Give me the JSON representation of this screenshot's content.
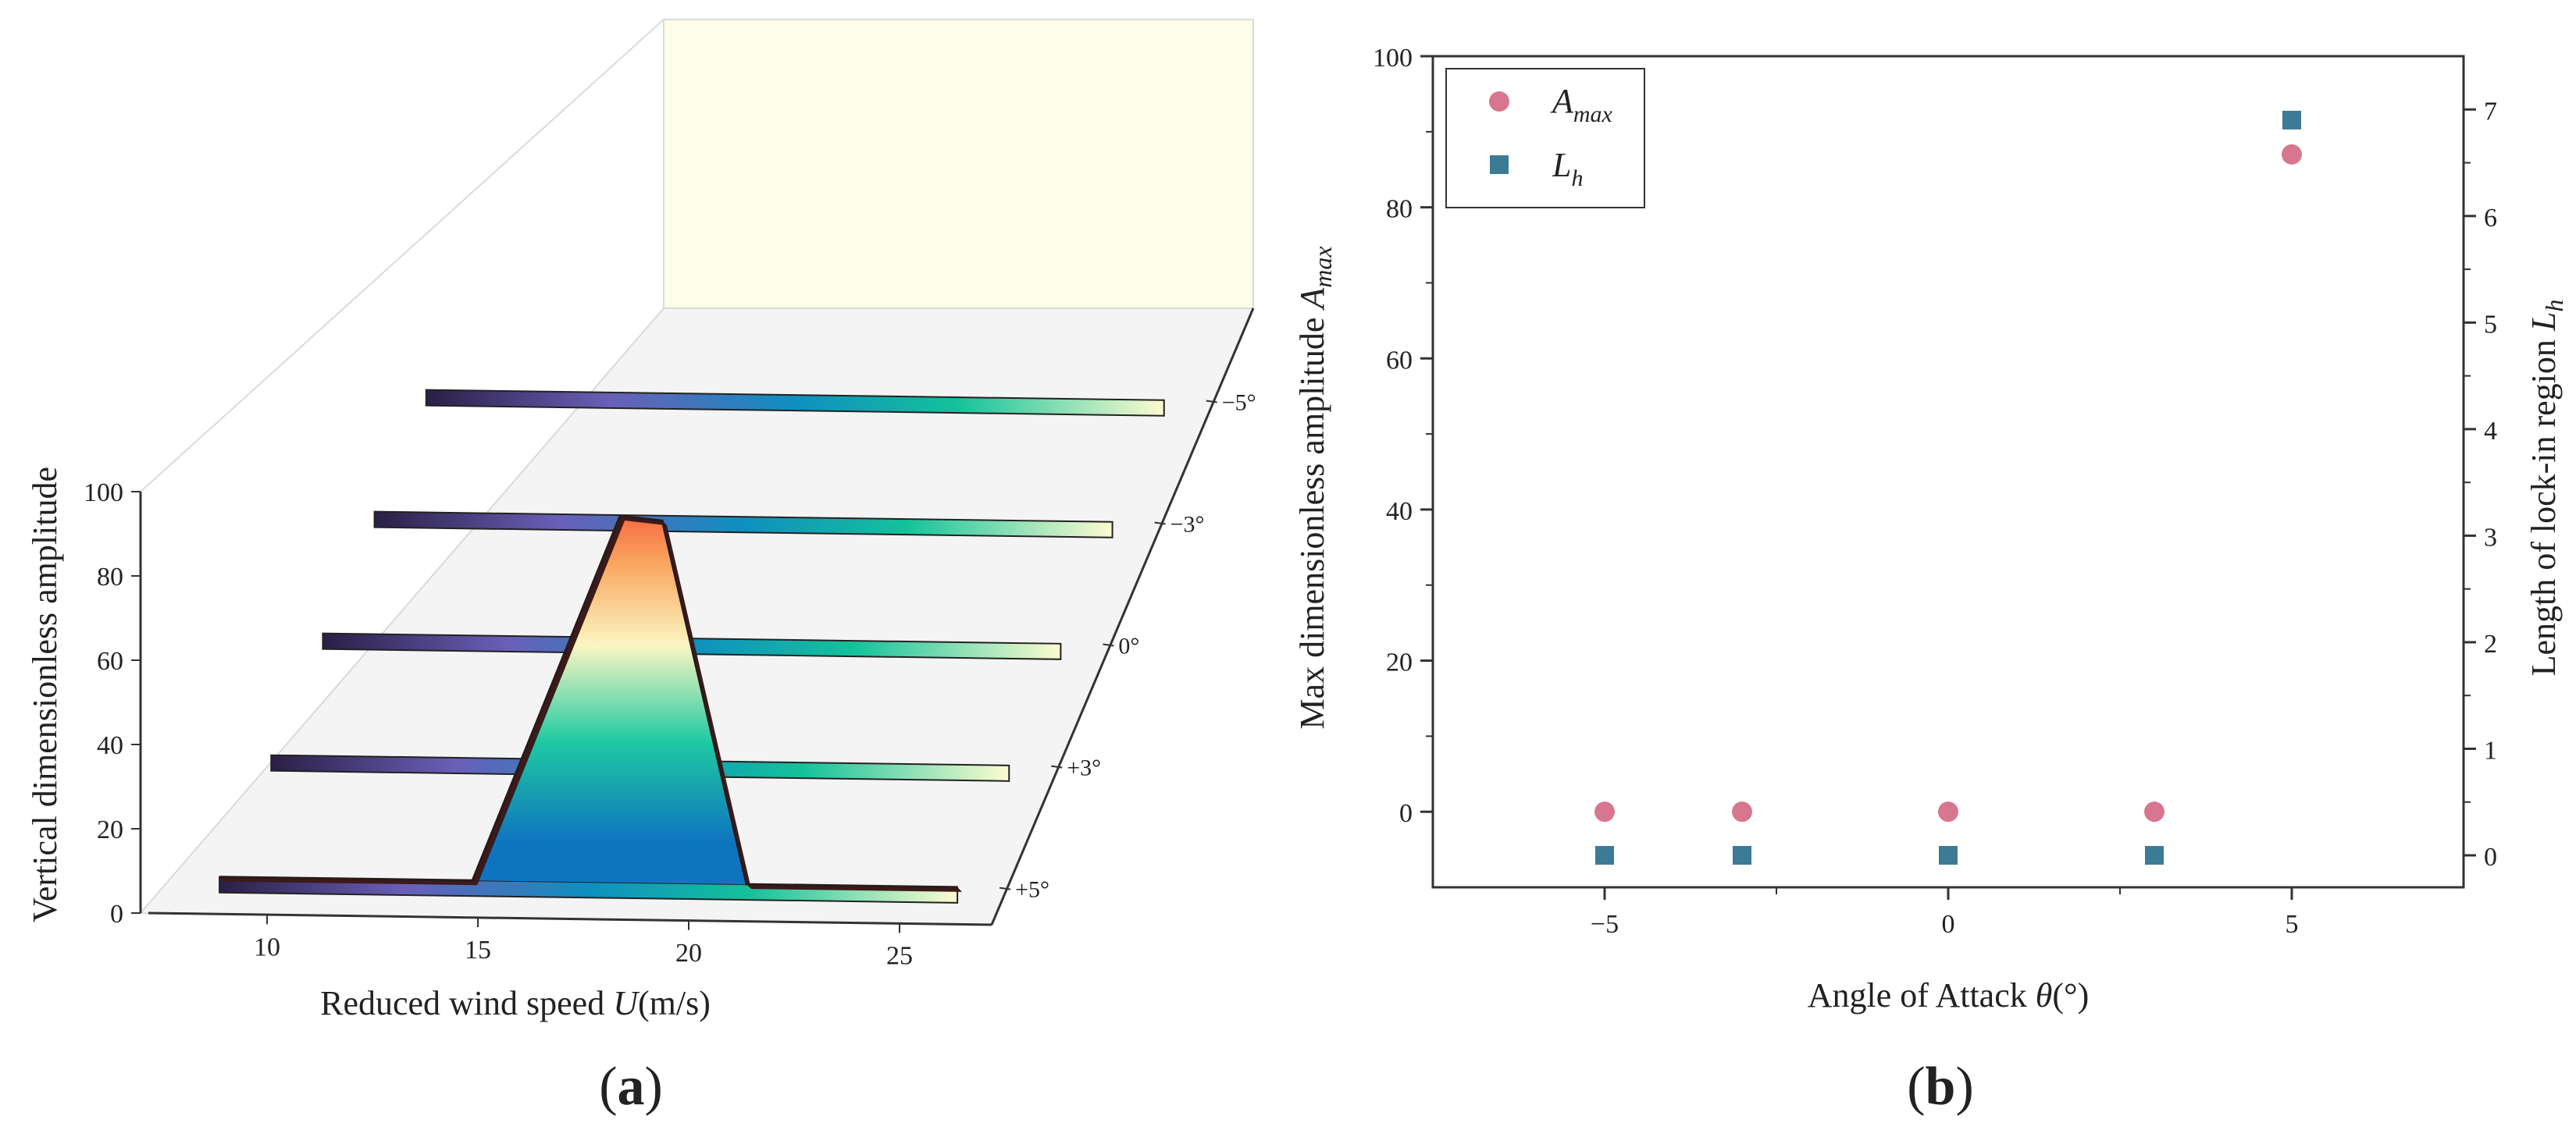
{
  "panels": {
    "a": "a",
    "b": "b"
  },
  "chart_data": [
    {
      "id": "a",
      "type": "area",
      "variant": "3d-waterfall",
      "title": "",
      "xlabel_text": "Reduced wind speed ",
      "xlabel_var": "U",
      "xlabel_unit": "(m/s)",
      "ylabel": "Vertical dimensionless amplitude",
      "xlim": [
        7,
        27
      ],
      "ylim": [
        0,
        100
      ],
      "xticks": [
        10,
        15,
        20,
        25
      ],
      "yticks": [
        0,
        20,
        40,
        60,
        80,
        100
      ],
      "series": [
        {
          "name": "−5°",
          "x": [
            8.5,
            26
          ],
          "y": [
            0,
            0
          ]
        },
        {
          "name": "−3°",
          "x": [
            8.5,
            26
          ],
          "y": [
            0,
            0
          ]
        },
        {
          "name": "0°",
          "x": [
            8.5,
            26
          ],
          "y": [
            0,
            0
          ]
        },
        {
          "name": "+3°",
          "x": [
            8.5,
            26
          ],
          "y": [
            0,
            0
          ]
        },
        {
          "name": "+5°",
          "x": [
            8.5,
            14.5,
            18,
            19,
            21,
            26
          ],
          "y": [
            0,
            0,
            87,
            86,
            0,
            0
          ]
        }
      ]
    },
    {
      "id": "b",
      "type": "scatter",
      "xlabel_text": "Angle of Attack ",
      "xlabel_var": "θ",
      "xlabel_unit": "(°)",
      "ylabel_text": "Max dimensionless amplitude ",
      "ylabel_var": "A",
      "ylabel_sub": "max",
      "y2label_text": "Length of lock-in region ",
      "y2label_var": "L",
      "y2label_sub": "h",
      "xlim": [
        -7.5,
        7.5
      ],
      "ylim": [
        -10,
        100
      ],
      "y2lim": [
        -0.3,
        7.5
      ],
      "xticks": [
        -5,
        0,
        5
      ],
      "xtick_labels": [
        "−5",
        "0",
        "5"
      ],
      "yticks": [
        0,
        20,
        40,
        60,
        80,
        100
      ],
      "y2ticks": [
        0,
        1,
        2,
        3,
        4,
        5,
        6,
        7
      ],
      "legend_position": "top-left",
      "series": [
        {
          "name": "A",
          "sub": "max",
          "axis": "left",
          "marker": "circle",
          "color": "#d9768f",
          "x": [
            -5,
            -3,
            0,
            3,
            5
          ],
          "y": [
            0,
            0,
            0,
            0,
            87
          ]
        },
        {
          "name": "L",
          "sub": "h",
          "axis": "right",
          "marker": "square",
          "color": "#3d7a93",
          "x": [
            -5,
            -3,
            0,
            3,
            5
          ],
          "y": [
            0,
            0,
            0,
            0,
            6.9
          ]
        }
      ]
    }
  ]
}
